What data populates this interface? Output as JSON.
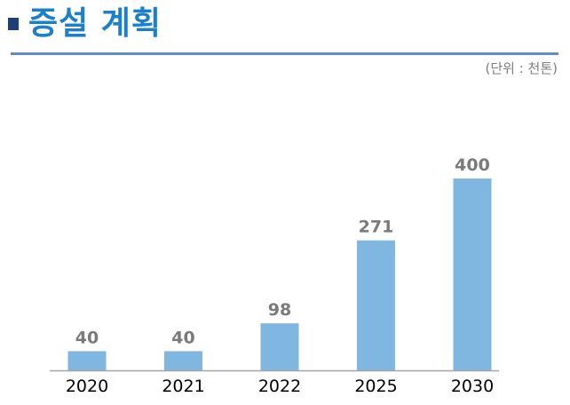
{
  "header": {
    "title": "증설 계획",
    "unit_note": "(단위 : 천톤)"
  },
  "colors": {
    "title": "#1c7fc9",
    "marker": "#1f3f7a",
    "rule": "#5f8dc4",
    "bar": "#7fb7e0",
    "value_label": "#7a7a7a"
  },
  "chart_data": {
    "type": "bar",
    "title": "",
    "xlabel": "",
    "ylabel": "",
    "categories": [
      "2020",
      "2021",
      "2022",
      "2025",
      "2030"
    ],
    "values": [
      40,
      40,
      98,
      271,
      400
    ],
    "ylim": [
      0,
      400
    ],
    "grid": false,
    "data_labels": true
  }
}
